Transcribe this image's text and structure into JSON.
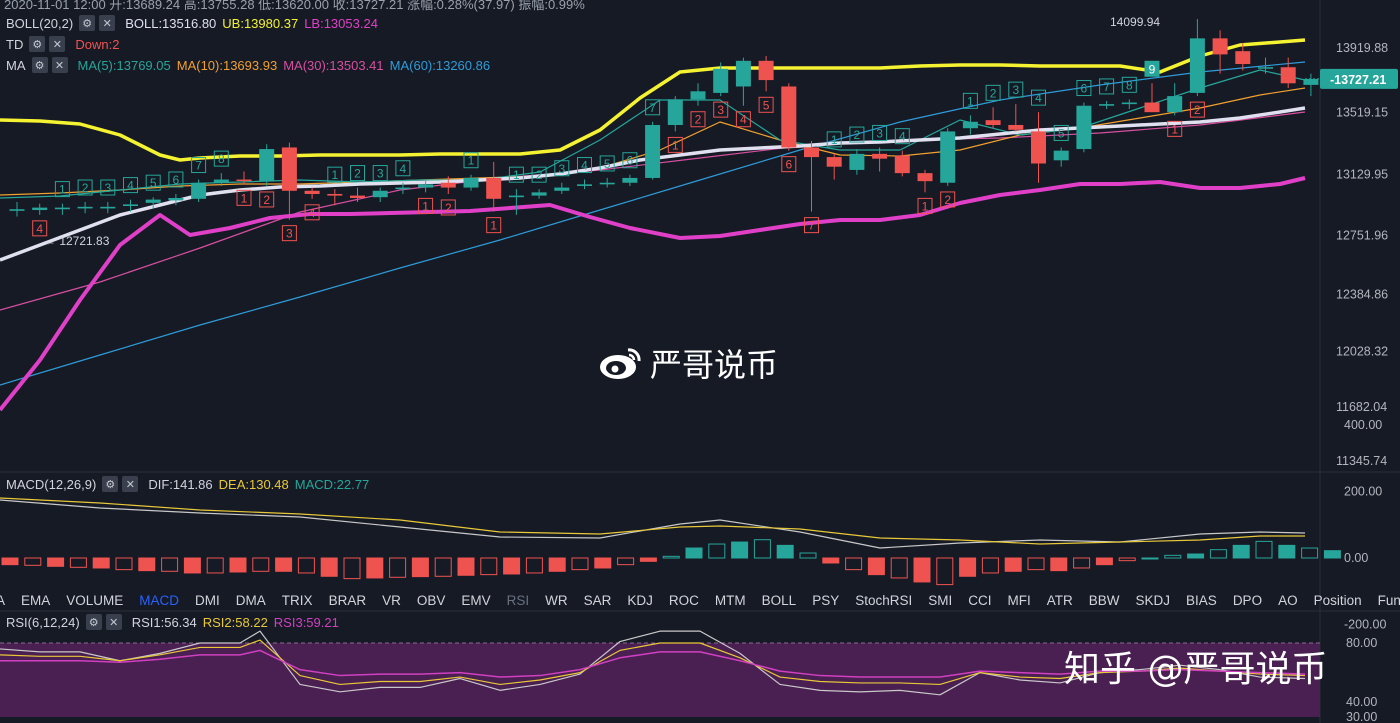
{
  "header": {
    "ohlc": "2020-11-01 12:00  开:13689.24  高:13755.28  低:13620.00  收:13727.21  涨幅:0.28%(37.97)  振幅:0.99%"
  },
  "indicators": {
    "boll": {
      "name": "BOLL(20,2)",
      "mid": "BOLL:13516.80",
      "ub": "UB:13980.37",
      "lb": "LB:13053.24"
    },
    "td": {
      "name": "TD",
      "down": "Down:2"
    },
    "ma": {
      "name": "MA",
      "ma5": "MA(5):13769.05",
      "ma10": "MA(10):13693.93",
      "ma30": "MA(30):13503.41",
      "ma60": "MA(60):13260.86"
    },
    "macd": {
      "name": "MACD(12,26,9)",
      "dif": "DIF:141.86",
      "dea": "DEA:130.48",
      "macd": "MACD:22.77"
    },
    "rsi": {
      "name": "RSI(6,12,24)",
      "rsi1": "RSI1:56.34",
      "rsi2": "RSI2:58.22",
      "rsi3": "RSI3:59.21"
    }
  },
  "tabs": [
    {
      "label": "A",
      "state": "normal"
    },
    {
      "label": "EMA",
      "state": "normal"
    },
    {
      "label": "VOLUME",
      "state": "normal"
    },
    {
      "label": "MACD",
      "state": "active"
    },
    {
      "label": "DMI",
      "state": "normal"
    },
    {
      "label": "DMA",
      "state": "normal"
    },
    {
      "label": "TRIX",
      "state": "normal"
    },
    {
      "label": "BRAR",
      "state": "normal"
    },
    {
      "label": "VR",
      "state": "normal"
    },
    {
      "label": "OBV",
      "state": "normal"
    },
    {
      "label": "EMV",
      "state": "normal"
    },
    {
      "label": "RSI",
      "state": "disabled"
    },
    {
      "label": "WR",
      "state": "normal"
    },
    {
      "label": "SAR",
      "state": "normal"
    },
    {
      "label": "KDJ",
      "state": "normal"
    },
    {
      "label": "ROC",
      "state": "normal"
    },
    {
      "label": "MTM",
      "state": "normal"
    },
    {
      "label": "BOLL",
      "state": "normal"
    },
    {
      "label": "PSY",
      "state": "normal"
    },
    {
      "label": "StochRSI",
      "state": "normal"
    },
    {
      "label": "SMI",
      "state": "normal"
    },
    {
      "label": "CCI",
      "state": "normal"
    },
    {
      "label": "MFI",
      "state": "normal"
    },
    {
      "label": "ATR",
      "state": "normal"
    },
    {
      "label": "BBW",
      "state": "normal"
    },
    {
      "label": "SKDJ",
      "state": "normal"
    },
    {
      "label": "BIAS",
      "state": "normal"
    },
    {
      "label": "DPO",
      "state": "normal"
    },
    {
      "label": "AO",
      "state": "normal"
    },
    {
      "label": "Position",
      "state": "normal"
    },
    {
      "label": "Fundflow",
      "state": "normal"
    }
  ],
  "watermarks": {
    "center": "严哥说币",
    "bottom": "知乎 @严哥说币"
  },
  "icons": {
    "settings": "gear-icon",
    "close": "close-icon",
    "weibo": "weibo-logo-icon"
  },
  "colors": {
    "background": "#161a25",
    "up": "#26a69a",
    "down": "#ef5350",
    "boll_ub": "#f5f231",
    "boll_lb": "#e040c8",
    "boll_mid": "#e0e0f0",
    "ma5": "#26a69a",
    "ma10": "#f0a030",
    "ma30": "#d64fa0",
    "ma60": "#2f9bd8",
    "dif": "#c8c8c8",
    "dea": "#e8c838",
    "rsi1": "#c8c8c8",
    "rsi2": "#e8c838",
    "rsi3": "#d040c0"
  },
  "chart_data": {
    "type": "candlestick",
    "price_axis_ticks": [
      "13919.88",
      "13519.15",
      "13129.95",
      "12751.96",
      "12384.86",
      "12028.32",
      "11682.04",
      "11345.74"
    ],
    "current_price": "13727.21",
    "price_markers": [
      {
        "label": "14099.94",
        "value": 14099.94
      },
      {
        "label": "← 12721.83",
        "value": 12721.83
      }
    ],
    "candles": [
      {
        "o": 12905,
        "h": 12960,
        "l": 12870,
        "c": 12915
      },
      {
        "o": 12910,
        "h": 12950,
        "l": 12880,
        "c": 12925
      },
      {
        "o": 12915,
        "h": 12950,
        "l": 12880,
        "c": 12925
      },
      {
        "o": 12920,
        "h": 12960,
        "l": 12890,
        "c": 12930
      },
      {
        "o": 12920,
        "h": 12960,
        "l": 12890,
        "c": 12930
      },
      {
        "o": 12935,
        "h": 12975,
        "l": 12900,
        "c": 12945
      },
      {
        "o": 12955,
        "h": 12990,
        "l": 12920,
        "c": 12975
      },
      {
        "o": 12970,
        "h": 13010,
        "l": 12940,
        "c": 12985
      },
      {
        "o": 12980,
        "h": 13100,
        "l": 12960,
        "c": 13080
      },
      {
        "o": 13080,
        "h": 13140,
        "l": 13060,
        "c": 13100
      },
      {
        "o": 13100,
        "h": 13150,
        "l": 13070,
        "c": 13095
      },
      {
        "o": 13090,
        "h": 13320,
        "l": 13060,
        "c": 13290
      },
      {
        "o": 13300,
        "h": 13330,
        "l": 12850,
        "c": 13030
      },
      {
        "o": 13030,
        "h": 13050,
        "l": 12980,
        "c": 13010
      },
      {
        "o": 13010,
        "h": 13040,
        "l": 12940,
        "c": 13000
      },
      {
        "o": 13000,
        "h": 13050,
        "l": 12960,
        "c": 12985
      },
      {
        "o": 12990,
        "h": 13050,
        "l": 12960,
        "c": 13030
      },
      {
        "o": 13040,
        "h": 13080,
        "l": 13010,
        "c": 13050
      },
      {
        "o": 13050,
        "h": 13090,
        "l": 13020,
        "c": 13070
      },
      {
        "o": 13080,
        "h": 13120,
        "l": 13010,
        "c": 13050
      },
      {
        "o": 13050,
        "h": 13130,
        "l": 13030,
        "c": 13110
      },
      {
        "o": 13110,
        "h": 13210,
        "l": 12900,
        "c": 12980
      },
      {
        "o": 12990,
        "h": 13040,
        "l": 12880,
        "c": 13000
      },
      {
        "o": 13000,
        "h": 13040,
        "l": 12980,
        "c": 13020
      },
      {
        "o": 13030,
        "h": 13080,
        "l": 13010,
        "c": 13050
      },
      {
        "o": 13060,
        "h": 13100,
        "l": 13040,
        "c": 13070
      },
      {
        "o": 13070,
        "h": 13110,
        "l": 13050,
        "c": 13080
      },
      {
        "o": 13080,
        "h": 13130,
        "l": 13060,
        "c": 13110
      },
      {
        "o": 13110,
        "h": 13460,
        "l": 13100,
        "c": 13440
      },
      {
        "o": 13440,
        "h": 13620,
        "l": 13400,
        "c": 13600
      },
      {
        "o": 13600,
        "h": 13700,
        "l": 13560,
        "c": 13650
      },
      {
        "o": 13640,
        "h": 13830,
        "l": 13620,
        "c": 13790
      },
      {
        "o": 13680,
        "h": 13860,
        "l": 13560,
        "c": 13840
      },
      {
        "o": 13840,
        "h": 13870,
        "l": 13650,
        "c": 13720
      },
      {
        "o": 13680,
        "h": 13700,
        "l": 13280,
        "c": 13300
      },
      {
        "o": 13300,
        "h": 13340,
        "l": 12900,
        "c": 13240
      },
      {
        "o": 13240,
        "h": 13260,
        "l": 13100,
        "c": 13180
      },
      {
        "o": 13160,
        "h": 13290,
        "l": 13130,
        "c": 13260
      },
      {
        "o": 13260,
        "h": 13300,
        "l": 13150,
        "c": 13230
      },
      {
        "o": 13250,
        "h": 13280,
        "l": 13120,
        "c": 13140
      },
      {
        "o": 13140,
        "h": 13160,
        "l": 13020,
        "c": 13090
      },
      {
        "o": 13080,
        "h": 13420,
        "l": 13060,
        "c": 13400
      },
      {
        "o": 13420,
        "h": 13500,
        "l": 13380,
        "c": 13460
      },
      {
        "o": 13470,
        "h": 13550,
        "l": 13420,
        "c": 13440
      },
      {
        "o": 13440,
        "h": 13570,
        "l": 13400,
        "c": 13410
      },
      {
        "o": 13400,
        "h": 13520,
        "l": 13080,
        "c": 13200
      },
      {
        "o": 13220,
        "h": 13300,
        "l": 13180,
        "c": 13280
      },
      {
        "o": 13290,
        "h": 13580,
        "l": 13270,
        "c": 13560
      },
      {
        "o": 13560,
        "h": 13590,
        "l": 13540,
        "c": 13570
      },
      {
        "o": 13570,
        "h": 13600,
        "l": 13540,
        "c": 13580
      },
      {
        "o": 13580,
        "h": 13700,
        "l": 13520,
        "c": 13520
      },
      {
        "o": 13520,
        "h": 13700,
        "l": 13500,
        "c": 13620
      },
      {
        "o": 13640,
        "h": 14100,
        "l": 13620,
        "c": 13980
      },
      {
        "o": 13980,
        "h": 14030,
        "l": 13760,
        "c": 13880
      },
      {
        "o": 13900,
        "h": 13950,
        "l": 13780,
        "c": 13820
      },
      {
        "o": 13800,
        "h": 13860,
        "l": 13760,
        "c": 13800
      },
      {
        "o": 13800,
        "h": 13860,
        "l": 13670,
        "c": 13700
      },
      {
        "o": 13690,
        "h": 13760,
        "l": 13620,
        "c": 13727
      }
    ],
    "td_labels": [
      {
        "i": 1,
        "t": "4",
        "pos": "below",
        "col": "down"
      },
      {
        "i": 2,
        "t": "1",
        "pos": "above",
        "col": "up"
      },
      {
        "i": 3,
        "t": "2",
        "pos": "above",
        "col": "up"
      },
      {
        "i": 4,
        "t": "3",
        "pos": "above",
        "col": "up"
      },
      {
        "i": 5,
        "t": "4",
        "pos": "above",
        "col": "up"
      },
      {
        "i": 6,
        "t": "5",
        "pos": "above",
        "col": "up"
      },
      {
        "i": 7,
        "t": "6",
        "pos": "above",
        "col": "up"
      },
      {
        "i": 8,
        "t": "7",
        "pos": "above",
        "col": "up"
      },
      {
        "i": 9,
        "t": "8",
        "pos": "above",
        "col": "up"
      },
      {
        "i": 10,
        "t": "1",
        "pos": "below",
        "col": "down"
      },
      {
        "i": 11,
        "t": "2",
        "pos": "below",
        "col": "down"
      },
      {
        "i": 12,
        "t": "3",
        "pos": "below",
        "col": "down"
      },
      {
        "i": 13,
        "t": "4",
        "pos": "below",
        "col": "down"
      },
      {
        "i": 14,
        "t": "1",
        "pos": "above",
        "col": "up"
      },
      {
        "i": 15,
        "t": "2",
        "pos": "above",
        "col": "up"
      },
      {
        "i": 16,
        "t": "3",
        "pos": "above",
        "col": "up"
      },
      {
        "i": 17,
        "t": "4",
        "pos": "above",
        "col": "up"
      },
      {
        "i": 18,
        "t": "1",
        "pos": "below",
        "col": "down"
      },
      {
        "i": 19,
        "t": "2",
        "pos": "below",
        "col": "down"
      },
      {
        "i": 20,
        "t": "1",
        "pos": "above",
        "col": "up"
      },
      {
        "i": 21,
        "t": "1",
        "pos": "below",
        "col": "down"
      },
      {
        "i": 22,
        "t": "1",
        "pos": "above",
        "col": "up"
      },
      {
        "i": 23,
        "t": "2",
        "pos": "above",
        "col": "up"
      },
      {
        "i": 24,
        "t": "3",
        "pos": "above",
        "col": "up"
      },
      {
        "i": 25,
        "t": "4",
        "pos": "above",
        "col": "up"
      },
      {
        "i": 26,
        "t": "5",
        "pos": "above",
        "col": "up"
      },
      {
        "i": 27,
        "t": "6",
        "pos": "above",
        "col": "up"
      },
      {
        "i": 28,
        "t": "7",
        "pos": "above",
        "col": "up"
      },
      {
        "i": 29,
        "t": "1",
        "pos": "below",
        "col": "down"
      },
      {
        "i": 30,
        "t": "2",
        "pos": "below",
        "col": "down"
      },
      {
        "i": 31,
        "t": "3",
        "pos": "below",
        "col": "down"
      },
      {
        "i": 32,
        "t": "4",
        "pos": "below",
        "col": "down"
      },
      {
        "i": 33,
        "t": "5",
        "pos": "below",
        "col": "down"
      },
      {
        "i": 34,
        "t": "6",
        "pos": "below",
        "col": "down"
      },
      {
        "i": 35,
        "t": "7",
        "pos": "below",
        "col": "down"
      },
      {
        "i": 36,
        "t": "1",
        "pos": "above",
        "col": "up"
      },
      {
        "i": 37,
        "t": "2",
        "pos": "above",
        "col": "up"
      },
      {
        "i": 38,
        "t": "3",
        "pos": "above",
        "col": "up"
      },
      {
        "i": 39,
        "t": "4",
        "pos": "above",
        "col": "up"
      },
      {
        "i": 40,
        "t": "1",
        "pos": "below",
        "col": "down"
      },
      {
        "i": 41,
        "t": "2",
        "pos": "below",
        "col": "down"
      },
      {
        "i": 42,
        "t": "1",
        "pos": "above",
        "col": "up"
      },
      {
        "i": 43,
        "t": "2",
        "pos": "above",
        "col": "up"
      },
      {
        "i": 44,
        "t": "3",
        "pos": "above",
        "col": "up"
      },
      {
        "i": 45,
        "t": "4",
        "pos": "above",
        "col": "up"
      },
      {
        "i": 46,
        "t": "5",
        "pos": "above",
        "col": "up"
      },
      {
        "i": 47,
        "t": "6",
        "pos": "above",
        "col": "up"
      },
      {
        "i": 48,
        "t": "7",
        "pos": "above",
        "col": "up"
      },
      {
        "i": 49,
        "t": "8",
        "pos": "above",
        "col": "up"
      },
      {
        "i": 50,
        "t": "9",
        "pos": "above",
        "col": "up",
        "filled": true
      },
      {
        "i": 51,
        "t": "1",
        "pos": "below",
        "col": "down"
      },
      {
        "i": 52,
        "t": "2",
        "pos": "below",
        "col": "down"
      }
    ],
    "boll_ub": [
      13700,
      13690,
      13680,
      13640,
      13600,
      13450,
      13340,
      13310,
      13300,
      13300,
      13300,
      13300,
      13320,
      13330,
      13340,
      13350,
      13360,
      13370,
      13380,
      13390,
      13400,
      13430,
      13470,
      13530,
      13630,
      13740,
      13820,
      13860,
      13880,
      13880,
      13880,
      13880,
      13880,
      13880,
      13880,
      13900,
      13910,
      13920,
      13930,
      13950,
      13970,
      13990,
      14010,
      14030,
      14050
    ],
    "boll_lb": [
      11500,
      11800,
      12100,
      12500,
      12850,
      12960,
      12990,
      13000,
      13020,
      13030,
      13060,
      13090,
      13110,
      13110,
      13080,
      13010,
      12900,
      12870,
      12880,
      12920,
      12960,
      13000,
      13050,
      13090,
      13140,
      13200,
      13250,
      13300,
      13340,
      13350,
      13360,
      13360,
      13360,
      13350,
      13330,
      13320,
      13330,
      13360,
      13380
    ],
    "rsi_levels": [
      "80.00",
      "40.00",
      "30.00"
    ],
    "macd_axis_ticks": [
      "400.00",
      "200.00",
      "0.00",
      "-200.00"
    ]
  }
}
